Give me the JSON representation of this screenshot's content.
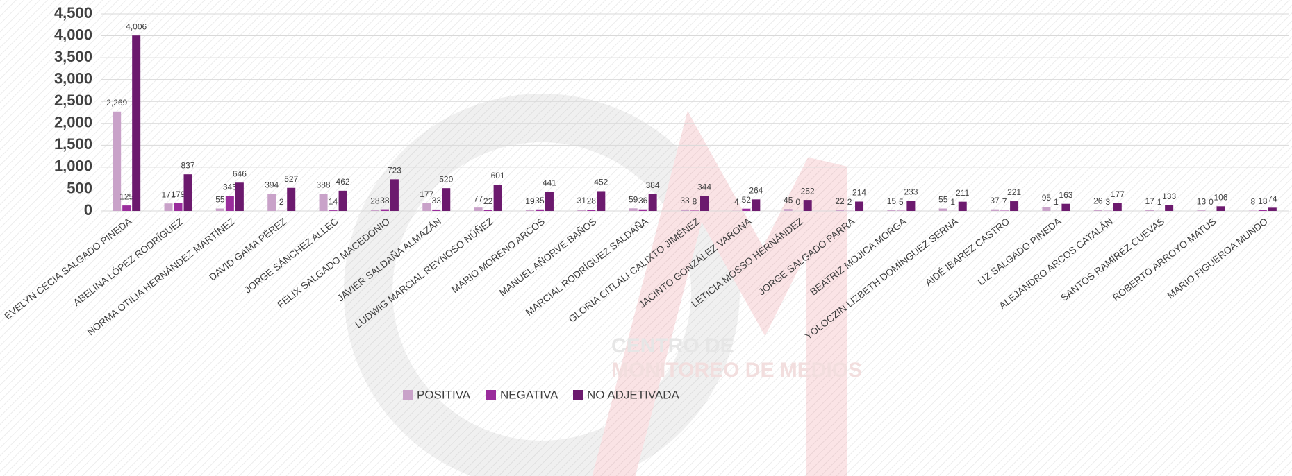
{
  "chart_data": {
    "type": "bar",
    "categories": [
      "EVELYN CECIA SALGADO PINEDA",
      "ABELINA LÓPEZ RODRÍGUEZ",
      "NORMA OTILIA HERNÁNDEZ MARTÍNEZ",
      "DAVID GAMA PÉREZ",
      "JORGE SÁNCHEZ ALLEC",
      "FÉLIX SALGADO MACEDONIO",
      "JAVIER SALDAÑA ALMAZÁN",
      "LUDWIG MARCIAL REYNOSO NÚÑEZ",
      "MARIO MORENO ARCOS",
      "MANUEL AÑORVE BAÑOS",
      "MARCIAL RODRÍGUEZ SALDAÑA",
      "GLORIA CITLALI CALIXTO JIMÉNEZ",
      "JACINTO GONZÁLEZ VARONA",
      "LETICIA MOSSO HERNÁNDEZ",
      "JORGE SALGADO PARRA",
      "BEATRIZ MOJICA MORGA",
      "YOLOCZIN LIZBETH DOMÍNGUEZ SERNA",
      "AIDÉ IBAREZ CASTRO",
      "LIZ SALGADO PINEDA",
      "ALEJANDRO ARCOS CATALÁN",
      "SANTOS RAMÍREZ CUEVAS",
      "ROBERTO ARROYO MATUS",
      "MARIO FIGUEROA MUNDO"
    ],
    "series": [
      {
        "name": "POSITIVA",
        "color": "#c9a2c9",
        "values": [
          2269,
          171,
          55,
          394,
          388,
          28,
          177,
          77,
          19,
          31,
          59,
          33,
          4,
          45,
          22,
          15,
          55,
          37,
          95,
          26,
          17,
          13,
          8
        ],
        "value_labels": [
          "2,269",
          "171",
          "55",
          "394",
          "388",
          "28",
          "177",
          "77",
          "19",
          "31",
          "59",
          "33",
          "4",
          "45",
          "22",
          "15",
          "55",
          "37",
          "95",
          "26",
          "17",
          "13",
          "8"
        ]
      },
      {
        "name": "NEGATIVA",
        "color": "#9a2c9c",
        "values": [
          125,
          179,
          345,
          2,
          14,
          38,
          33,
          22,
          35,
          28,
          36,
          8,
          52,
          0,
          2,
          5,
          1,
          7,
          1,
          3,
          1,
          0,
          18
        ]
      },
      {
        "name": "NO ADJETIVADA",
        "color": "#6c1a6e",
        "values": [
          4006,
          837,
          646,
          527,
          462,
          723,
          520,
          601,
          441,
          452,
          384,
          344,
          264,
          252,
          214,
          233,
          211,
          221,
          163,
          177,
          133,
          106,
          74
        ],
        "value_labels": [
          "4,006",
          "837",
          "646",
          "527",
          "462",
          "723",
          "520",
          "601",
          "441",
          "452",
          "384",
          "344",
          "264",
          "252",
          "214",
          "233",
          "211",
          "221",
          "163",
          "177",
          "133",
          "106",
          "74"
        ]
      }
    ],
    "ylim": [
      0,
      4500
    ],
    "yticks": [
      0,
      500,
      {
        "value": 1000,
        "label": "1,000"
      },
      {
        "value": 1500,
        "label": "1,500"
      },
      {
        "value": 2000,
        "label": "2,000"
      },
      {
        "value": 2500,
        "label": "2,500"
      },
      {
        "value": 3000,
        "label": "3,000"
      },
      {
        "value": 3500,
        "label": "3,500"
      },
      {
        "value": 4000,
        "label": "4,000"
      },
      {
        "value": 4500,
        "label": "4,500"
      }
    ],
    "grid": true,
    "legend": "bottom",
    "watermark": [
      "CENTRO DE",
      "MONITOREO DE MEDIOS"
    ]
  }
}
